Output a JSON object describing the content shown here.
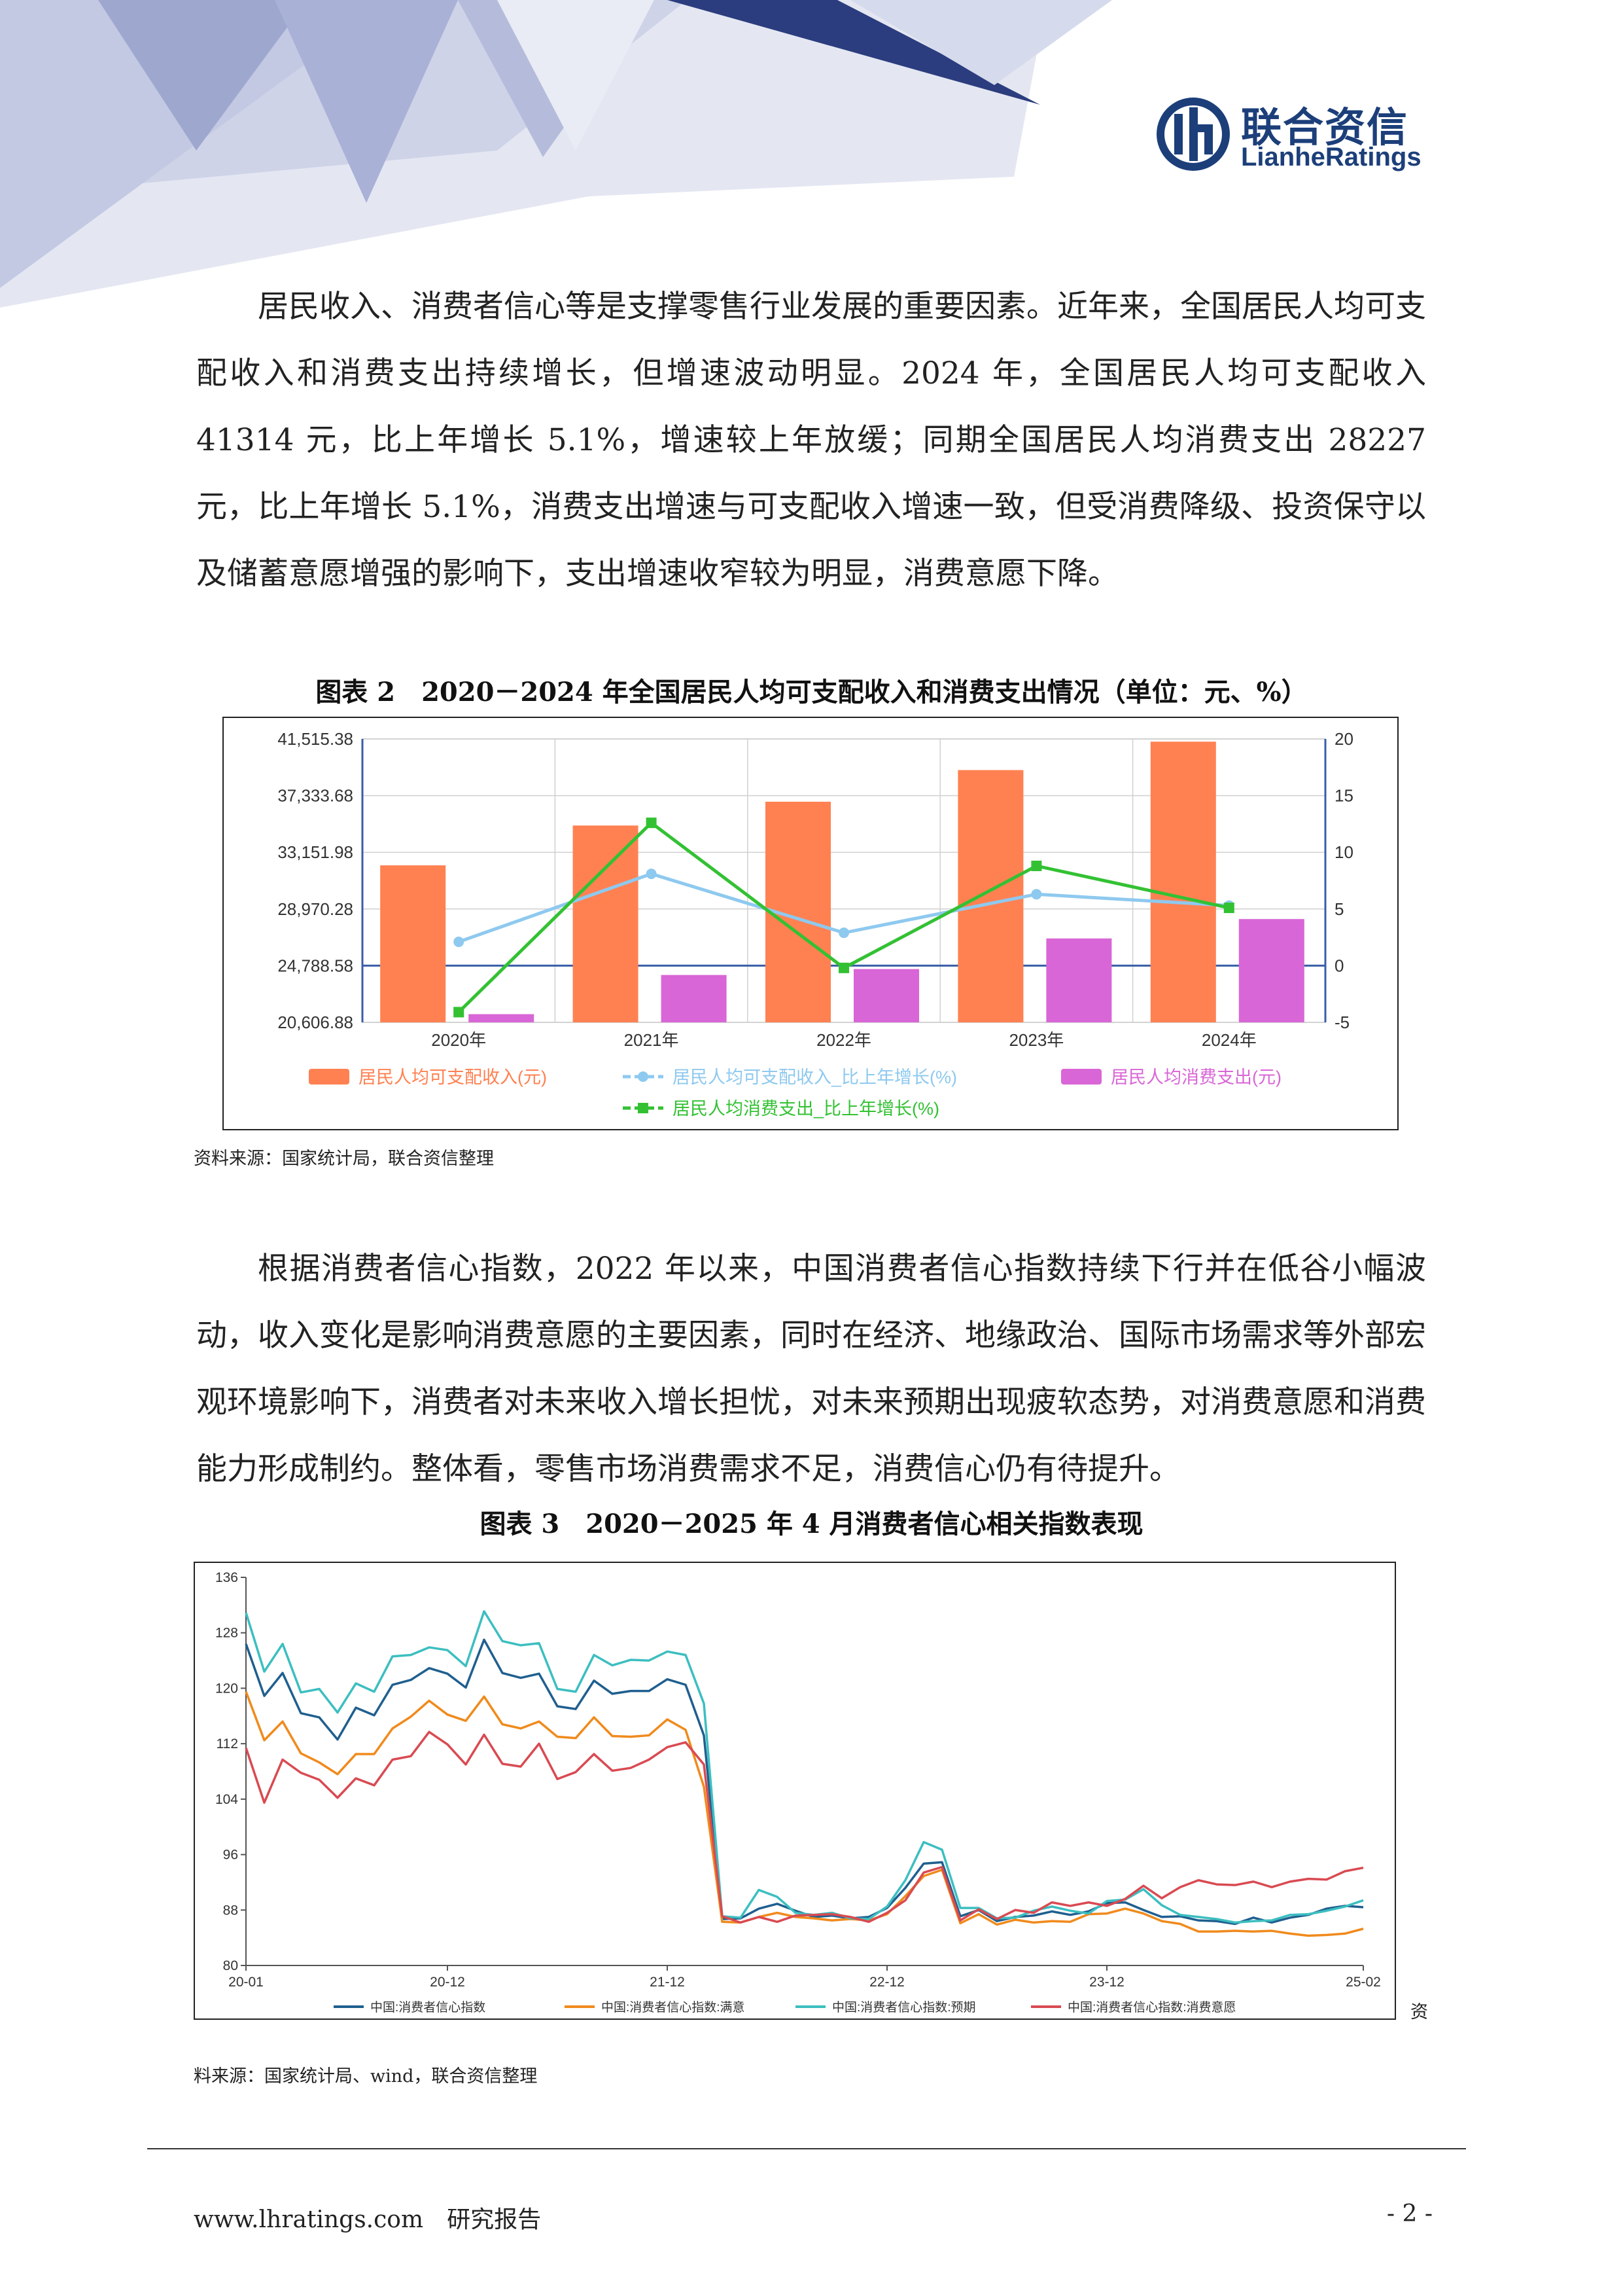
{
  "header": {
    "logo_cn": "联合资信",
    "logo_en": "LianheRatings",
    "colors": {
      "brand": "#1c3f7a",
      "deco_dark": "#2b3d7e",
      "deco_light": "#d9deef"
    },
    "logo_icon": "lianhe-logo-icon"
  },
  "body": {
    "para1": "居民收入、消费者信心等是支撑零售行业发展的重要因素。近年来，全国居民人均可支配收入和消费支出持续增长，但增速波动明显。2024 年，全国居民人均可支配收入 41314 元，比上年增长 5.1%，增速较上年放缓；同期全国居民人均消费支出 28227 元，比上年增长 5.1%，消费支出增速与可支配收入增速一致，但受消费降级、投资保守以及储蓄意愿增强的影响下，支出增速收窄较为明显，消费意愿下降。",
    "para2": "根据消费者信心指数，2022 年以来，中国消费者信心指数持续下行并在低谷小幅波动，收入变化是影响消费意愿的主要因素，同时在经济、地缘政治、国际市场需求等外部宏观环境影响下，消费者对未来收入增长担忧，对未来预期出现疲软态势，对消费意愿和消费能力形成制约。整体看，零售市场消费需求不足，消费信心仍有待提升。"
  },
  "fig2": {
    "caption": "图表 2　2020－2024 年全国居民人均可支配收入和消费支出情况（单位：元、%）",
    "source": "资料来源：国家统计局，联合资信整理"
  },
  "fig3": {
    "caption": "图表 3　2020－2025 年 4 月消费者信心相关指数表现",
    "source_a": "资",
    "source_b": "料来源：国家统计局、wind，联合资信整理"
  },
  "footer": {
    "site": "www.lhratings.com　研究报告",
    "page": "- 2 -"
  },
  "chart_data": [
    {
      "type": "bar",
      "categories": [
        "2020年",
        "2021年",
        "2022年",
        "2023年",
        "2024年"
      ],
      "y_left": {
        "ticks": [
          "41,515.38",
          "37,333.68",
          "33,151.98",
          "28,970.28",
          "24,788.58",
          "20,606.88"
        ],
        "range": [
          20606.88,
          41515.38
        ]
      },
      "y_right": {
        "ticks": [
          "20",
          "15",
          "10",
          "5",
          "0",
          "-5"
        ],
        "range": [
          -5,
          20
        ]
      },
      "grid": true,
      "legend_position": "bottom",
      "series": [
        {
          "name": "居民人均可支配收入(元)",
          "type": "bar",
          "axis": "left",
          "color": "#ff8152",
          "values": [
            32189,
            35128,
            36883,
            39218,
            41314
          ]
        },
        {
          "name": "居民人均消费支出(元)",
          "type": "bar",
          "axis": "left",
          "color": "#d966d6",
          "values": [
            21210,
            24100,
            24538,
            26796,
            28227
          ]
        },
        {
          "name": "居民人均可支配收入_比上年增长(%)",
          "type": "line",
          "axis": "right",
          "color": "#8ec9ef",
          "values": [
            2.1,
            8.1,
            2.9,
            6.3,
            5.3
          ]
        },
        {
          "name": "居民人均消费支出_比上年增长(%)",
          "type": "line",
          "axis": "right",
          "color": "#33c133",
          "values": [
            -4.1,
            12.6,
            -0.2,
            8.8,
            5.1
          ]
        }
      ]
    },
    {
      "type": "line",
      "x_ticks": [
        "20-01",
        "20-12",
        "21-12",
        "22-12",
        "23-12",
        "25-02"
      ],
      "y_ticks": [
        "136",
        "128",
        "120",
        "112",
        "104",
        "96",
        "88",
        "80"
      ],
      "ylim": [
        80,
        136
      ],
      "grid": false,
      "legend_position": "bottom",
      "x_count": 62,
      "series": [
        {
          "name": "中国:消费者信心指数",
          "color": "#1f5f8f",
          "values": [
            126.4,
            118.9,
            122.2,
            116.4,
            115.8,
            112.6,
            117.2,
            116.1,
            120.5,
            121.2,
            122.9,
            122.1,
            120.1,
            127.0,
            122.2,
            121.5,
            122.1,
            117.4,
            117.0,
            121.1,
            119.2,
            119.6,
            119.6,
            121.3,
            120.5,
            113.2,
            86.7,
            86.8,
            88.2,
            88.9,
            87.9,
            87.0,
            87.2,
            86.8,
            87.0,
            88.3,
            91.2,
            94.7,
            94.9,
            87.1,
            88.0,
            86.4,
            87.0,
            87.2,
            87.8,
            87.3,
            87.8,
            89.0,
            89.1,
            88.0,
            87.0,
            87.1,
            86.5,
            86.4,
            86.0,
            86.9,
            86.2,
            86.9,
            87.3,
            88.2,
            88.6,
            88.4
          ]
        },
        {
          "name": "中国:消费者信心指数:满意",
          "color": "#f08a1c",
          "values": [
            119.5,
            112.5,
            115.2,
            110.6,
            109.3,
            107.6,
            110.5,
            110.5,
            114.2,
            115.9,
            118.2,
            116.2,
            115.3,
            118.8,
            114.8,
            114.2,
            115.2,
            113.0,
            112.8,
            115.8,
            113.1,
            113.0,
            113.2,
            115.5,
            114.0,
            105.8,
            86.3,
            86.2,
            87.0,
            87.6,
            87.0,
            86.8,
            86.5,
            86.7,
            86.5,
            87.4,
            90.0,
            92.9,
            93.8,
            86.1,
            87.4,
            85.9,
            86.6,
            86.2,
            86.4,
            86.3,
            87.4,
            87.5,
            88.2,
            87.5,
            86.4,
            86.0,
            84.9,
            84.9,
            85.0,
            84.9,
            85.0,
            84.6,
            84.3,
            84.4,
            84.6,
            85.3
          ]
        },
        {
          "name": "中国:消费者信心指数:预期",
          "color": "#3cbec0",
          "values": [
            130.9,
            122.4,
            126.4,
            119.4,
            119.9,
            116.5,
            120.7,
            119.5,
            124.6,
            124.8,
            125.9,
            125.5,
            123.2,
            131.1,
            126.8,
            126.2,
            126.5,
            119.9,
            119.5,
            124.8,
            123.3,
            124.1,
            124.0,
            125.3,
            124.8,
            117.8,
            87.1,
            86.9,
            90.9,
            89.9,
            87.6,
            87.3,
            87.6,
            86.8,
            86.7,
            88.5,
            92.3,
            97.8,
            96.7,
            88.3,
            88.3,
            86.8,
            86.9,
            87.9,
            88.5,
            87.9,
            87.5,
            89.3,
            89.5,
            91.0,
            88.7,
            87.3,
            87.0,
            86.7,
            86.2,
            86.4,
            86.5,
            87.3,
            87.4,
            87.9,
            88.5,
            89.4
          ]
        },
        {
          "name": "中国:消费者信心指数:消费意愿",
          "color": "#d94a52",
          "values": [
            111.4,
            103.5,
            109.7,
            107.8,
            106.8,
            104.2,
            107.0,
            106.0,
            109.7,
            110.2,
            113.7,
            111.9,
            109.0,
            113.3,
            109.1,
            108.7,
            112.0,
            106.9,
            107.9,
            110.5,
            108.1,
            108.5,
            109.7,
            111.5,
            112.2,
            109.0,
            87.1,
            86.2,
            87.0,
            86.3,
            87.2,
            87.3,
            87.4,
            87.0,
            86.3,
            87.6,
            89.4,
            93.4,
            94.2,
            86.5,
            88.1,
            86.7,
            88.0,
            87.6,
            89.1,
            88.6,
            89.1,
            88.6,
            89.6,
            91.5,
            89.7,
            91.3,
            92.3,
            91.7,
            91.6,
            92.1,
            91.3,
            92.1,
            92.5,
            92.4,
            93.6,
            94.1
          ]
        }
      ]
    }
  ]
}
